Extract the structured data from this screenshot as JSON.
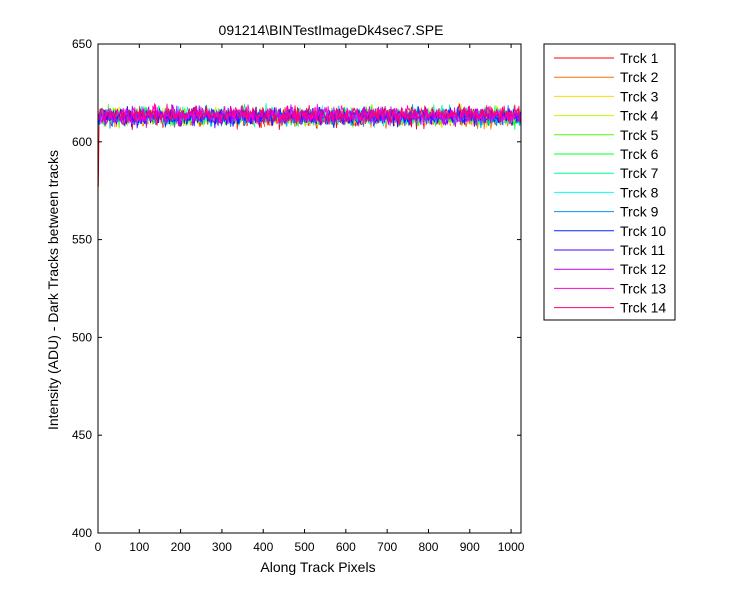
{
  "chart_data": {
    "type": "line",
    "title": "091214\\BINTestImageDk4sec7.SPE",
    "xlabel": "Along Track Pixels",
    "ylabel": "Intensity (ADU) - Dark Tracks between tracks",
    "xlim": [
      0,
      1024
    ],
    "ylim": [
      400,
      650
    ],
    "xticks": [
      0,
      100,
      200,
      300,
      400,
      500,
      600,
      700,
      800,
      900,
      1000
    ],
    "yticks": [
      400,
      450,
      500,
      550,
      600,
      650
    ],
    "grid": false,
    "legend_position": "outside-right-top",
    "x": {
      "start": 1,
      "end": 1024,
      "step": 1
    },
    "noise_band": {
      "low": 603,
      "high": 627
    },
    "series": [
      {
        "name": "Trck 1",
        "color": "#ff0000",
        "mean": 612,
        "first_value": 577
      },
      {
        "name": "Trck 2",
        "color": "#ff6d00",
        "mean": 612
      },
      {
        "name": "Trck 3",
        "color": "#ffdb00",
        "mean": 613
      },
      {
        "name": "Trck 4",
        "color": "#b6ff00",
        "mean": 613
      },
      {
        "name": "Trck 5",
        "color": "#49ff00",
        "mean": 613
      },
      {
        "name": "Trck 6",
        "color": "#00ff24",
        "mean": 613
      },
      {
        "name": "Trck 7",
        "color": "#00ff92",
        "mean": 613
      },
      {
        "name": "Trck 8",
        "color": "#00ffff",
        "mean": 613
      },
      {
        "name": "Trck 9",
        "color": "#0092ff",
        "mean": 613
      },
      {
        "name": "Trck 10",
        "color": "#0024ff",
        "mean": 613
      },
      {
        "name": "Trck 11",
        "color": "#4900ff",
        "mean": 613
      },
      {
        "name": "Trck 12",
        "color": "#b600ff",
        "mean": 613
      },
      {
        "name": "Trck 13",
        "color": "#ff00db",
        "mean": 614
      },
      {
        "name": "Trck 14",
        "color": "#ff006d",
        "mean": 614
      }
    ]
  }
}
